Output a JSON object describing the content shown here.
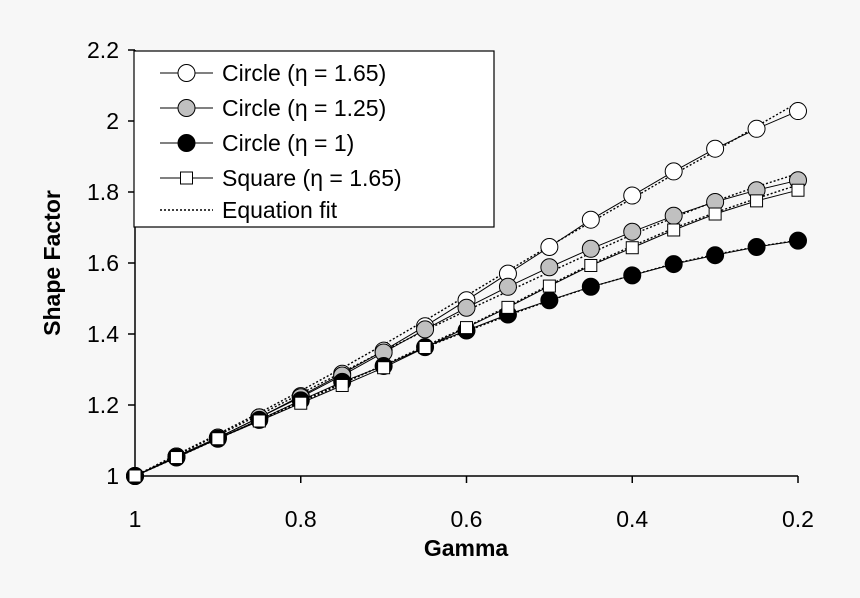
{
  "chart_data": {
    "type": "line",
    "xlabel": "Gamma",
    "ylabel": "Shape Factor",
    "xlim": [
      1,
      0.2
    ],
    "ylim": [
      1,
      2.2
    ],
    "x_reversed": true,
    "x_ticks": [
      "1",
      "0.8",
      "0.6",
      "0.4",
      "0.2"
    ],
    "y_ticks": [
      "1",
      "1.2",
      "1.4",
      "1.6",
      "1.8",
      "2",
      "2.2"
    ],
    "grid": false,
    "legend_position": "top-left",
    "x": [
      1,
      0.95,
      0.9,
      0.85,
      0.8,
      0.75,
      0.7,
      0.65,
      0.6,
      0.55,
      0.5,
      0.45,
      0.4,
      0.35,
      0.3,
      0.25,
      0.2
    ],
    "series": [
      {
        "name": "Circle (η = 1.65)",
        "marker": "circle-open",
        "values": [
          1.0,
          1.055,
          1.108,
          1.165,
          1.225,
          1.288,
          1.353,
          1.422,
          1.495,
          1.57,
          1.645,
          1.722,
          1.79,
          1.858,
          1.922,
          1.978,
          2.028
        ],
        "fit": [
          1.0,
          1.06,
          1.118,
          1.178,
          1.24,
          1.304,
          1.37,
          1.438,
          1.508,
          1.578,
          1.648,
          1.715,
          1.782,
          1.85,
          1.915,
          1.985,
          2.052
        ]
      },
      {
        "name": "Circle (η = 1.25)",
        "marker": "circle-gray",
        "values": [
          1.0,
          1.055,
          1.108,
          1.165,
          1.222,
          1.283,
          1.348,
          1.413,
          1.474,
          1.533,
          1.588,
          1.64,
          1.688,
          1.733,
          1.772,
          1.805,
          1.833
        ],
        "fit": [
          1.0,
          1.058,
          1.115,
          1.172,
          1.232,
          1.292,
          1.352,
          1.41,
          1.466,
          1.52,
          1.574,
          1.628,
          1.68,
          1.728,
          1.774,
          1.815,
          1.852
        ]
      },
      {
        "name": "Circle (η = 1)",
        "marker": "circle-filled",
        "values": [
          1.0,
          1.052,
          1.105,
          1.158,
          1.213,
          1.265,
          1.31,
          1.363,
          1.41,
          1.455,
          1.495,
          1.533,
          1.565,
          1.597,
          1.622,
          1.645,
          1.663
        ],
        "fit": [
          1.0,
          1.052,
          1.105,
          1.158,
          1.212,
          1.262,
          1.312,
          1.362,
          1.408,
          1.452,
          1.494,
          1.532,
          1.566,
          1.598,
          1.624,
          1.646,
          1.664
        ]
      },
      {
        "name": "Square (η = 1.65)",
        "marker": "square-open",
        "values": [
          1.0,
          1.052,
          1.105,
          1.155,
          1.205,
          1.255,
          1.305,
          1.362,
          1.418,
          1.475,
          1.535,
          1.593,
          1.643,
          1.693,
          1.738,
          1.775,
          1.805
        ],
        "fit": [
          1.0,
          1.052,
          1.105,
          1.156,
          1.208,
          1.26,
          1.312,
          1.366,
          1.42,
          1.478,
          1.538,
          1.596,
          1.648,
          1.698,
          1.742,
          1.782,
          1.82
        ]
      }
    ],
    "fit_legend_label": "Equation fit"
  }
}
